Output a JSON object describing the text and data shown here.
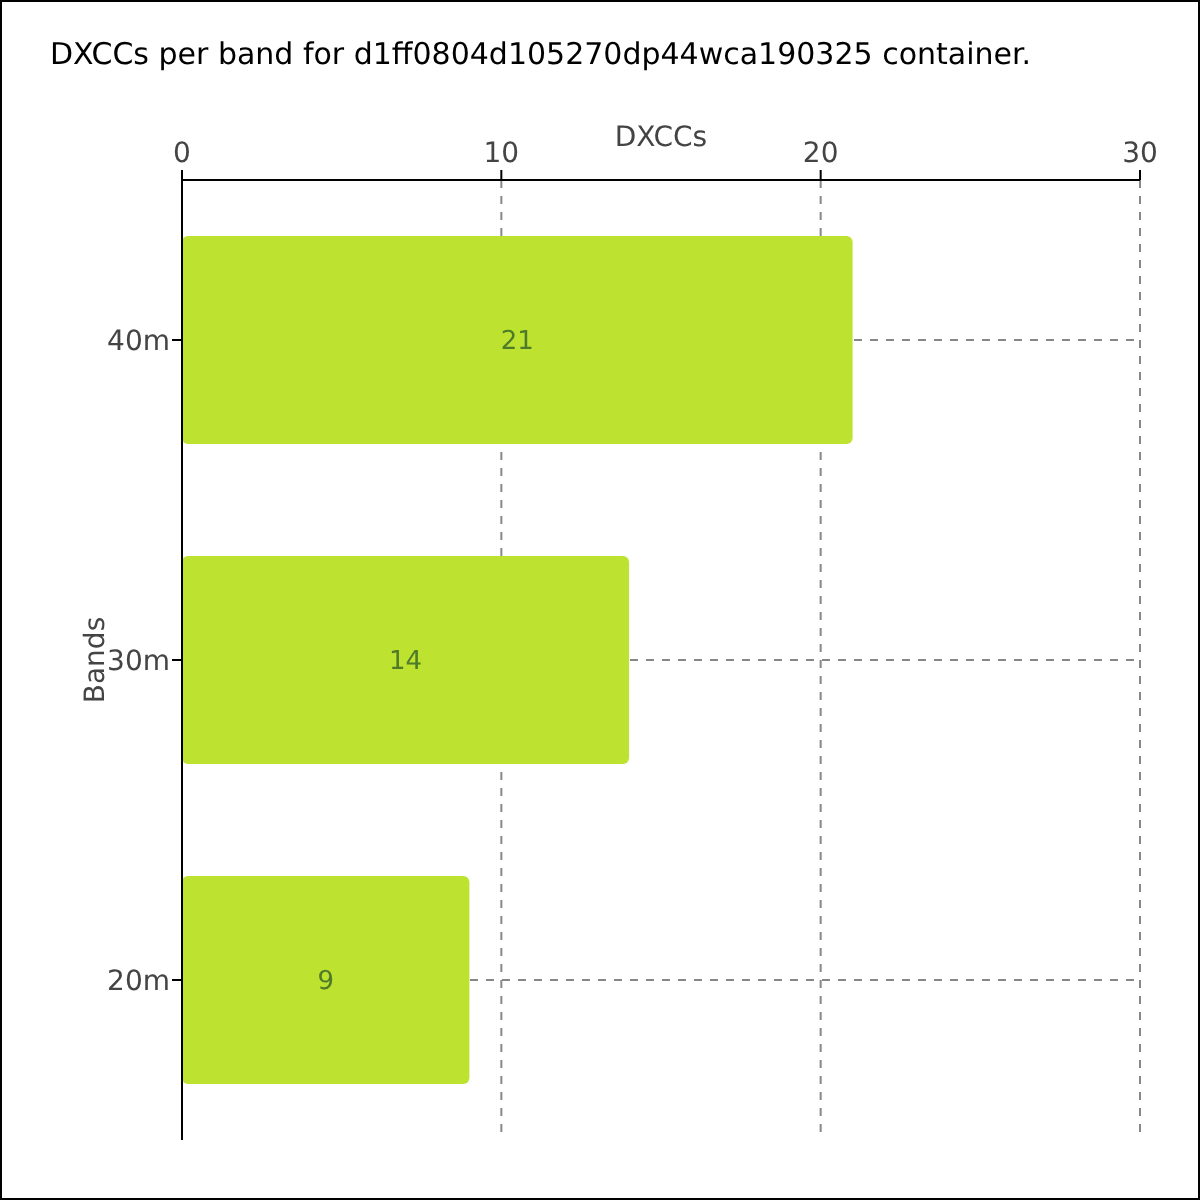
{
  "chart_data": {
    "type": "bar",
    "orientation": "horizontal",
    "title": "DXCCs per band for d1ff0804d105270dp44wca190325 container.",
    "xlabel": "DXCCs",
    "ylabel": "Bands",
    "categories": [
      "40m",
      "30m",
      "20m"
    ],
    "values": [
      21,
      14,
      9
    ],
    "color": "#bde22f",
    "xlim": [
      0,
      30
    ],
    "xticks": [
      0,
      10,
      20,
      30
    ],
    "grid": true,
    "data_labels": true
  }
}
